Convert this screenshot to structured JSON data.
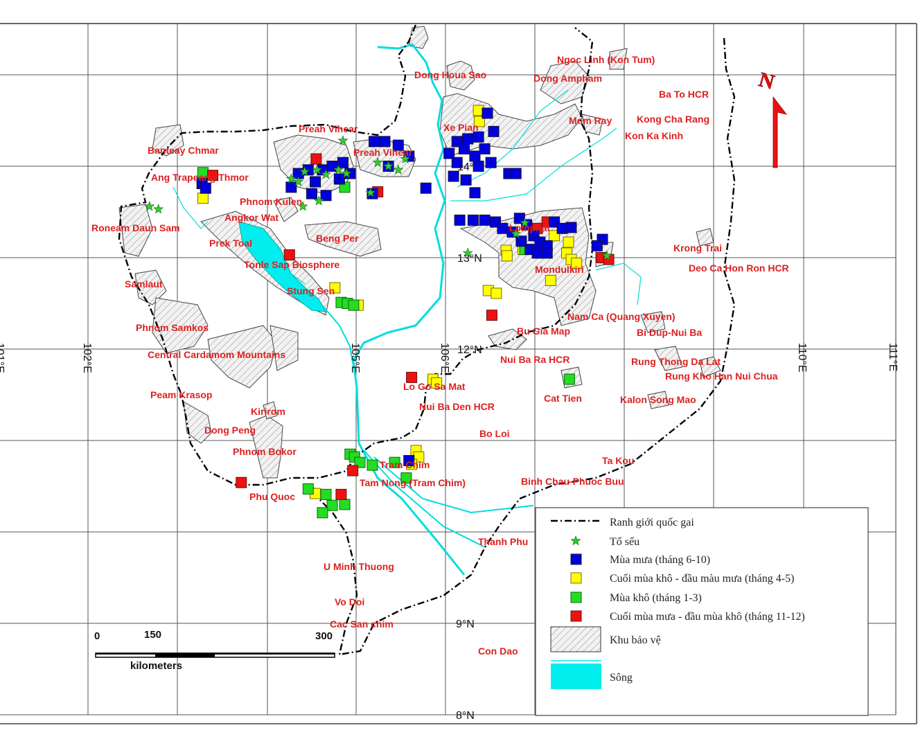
{
  "map": {
    "grid": {
      "lon_labels": [
        "101°E",
        "102°E",
        "105°E",
        "106°E",
        "110°E",
        "111°E"
      ],
      "lat_labels": [
        "14°N",
        "13°N",
        "12°N",
        "9°N",
        "8°N"
      ]
    },
    "north_arrow": "N",
    "place_labels": [
      "Ngoc Linh (Kon Tum)",
      "Dong Houa Sao",
      "Dong Ampham",
      "Ba To HCR",
      "Mom Ray",
      "Kong Cha Rang",
      "Kon Ka Kinh",
      "Xe Pian",
      "Preah Vihear",
      "Preah Vihear",
      "Banteay Chmar",
      "Ang Trapeang Thmor",
      "Phnom Kulen",
      "Angkor Wat",
      "Roneam Daun Sam",
      "Prek Toal",
      "Beng Per",
      "Lomphat",
      "Krong Trai",
      "Tonle Sap Biosphere",
      "Mondulkiri",
      "Deo Ca Hon Ron HCR",
      "Samlaut",
      "Stung Sen",
      "Nam Ca (Quang Xuyen)",
      "Phnom Samkos",
      "Bu Gia Map",
      "Bi Dup-Nui Ba",
      "Central Cardamom Mountains",
      "Nui Ba Ra HCR",
      "Rung Thong Da Lat",
      "Rung Kho Han Nui Chua",
      "Lo Go Sa Mat",
      "Peam Krasop",
      "Cat Tien",
      "Kalon Song Mao",
      "Nui Ba Den HCR",
      "Kirirom",
      "Bo Loi",
      "Dong Peng",
      "Phnom Bokor",
      "Ta Kou",
      "Tram Chim",
      "Tam Nong (Tram Chim)",
      "Binh Chau-Phuoc Buu",
      "Phu Quoc",
      "Thanh Phu",
      "U Minh Thuong",
      "Vo Doi",
      "Cac San chim",
      "Con Dao"
    ],
    "scale_bar": {
      "ticks": [
        "0",
        "150",
        "300"
      ],
      "unit": "kilometers"
    }
  },
  "legend": {
    "items": [
      {
        "label": "Ranh giới quốc gai",
        "symbol": "dash-dot-line",
        "color": "#000000"
      },
      {
        "label": "Tổ sếu",
        "symbol": "star",
        "color": "#22cc22"
      },
      {
        "label": "Mùa mưa (tháng 6-10)",
        "symbol": "square",
        "color": "#0000dd"
      },
      {
        "label": "Cuối mùa khô - đầu màu mưa (tháng 4-5)",
        "symbol": "square",
        "color": "#ffff00"
      },
      {
        "label": "Mùa khô (tháng 1-3)",
        "symbol": "square",
        "color": "#22dd22"
      },
      {
        "label": "Cuối mùa mưa - đầu mùa khô (tháng 11-12)",
        "symbol": "square",
        "color": "#ee1111"
      },
      {
        "label": "Khu bảo vệ",
        "symbol": "hatched-area",
        "color": "#e8e8e8"
      },
      {
        "label": "Sông",
        "symbol": "water",
        "color": "#00eeee"
      }
    ]
  },
  "observations": {
    "nests": [
      [
        104.85,
        14.28
      ],
      [
        102.68,
        13.56
      ],
      [
        102.78,
        13.53
      ],
      [
        104.4,
        13.56
      ],
      [
        104.58,
        13.62
      ],
      [
        104.27,
        13.86
      ],
      [
        104.35,
        13.83
      ],
      [
        104.42,
        13.94
      ],
      [
        104.56,
        13.96
      ],
      [
        104.66,
        13.91
      ],
      [
        104.8,
        13.96
      ],
      [
        104.89,
        13.92
      ],
      [
        105.24,
        14.04
      ],
      [
        105.36,
        14.0
      ],
      [
        105.47,
        13.96
      ],
      [
        105.55,
        14.08
      ],
      [
        105.16,
        13.71
      ],
      [
        106.25,
        13.05
      ],
      [
        106.89,
        13.38
      ],
      [
        106.79,
        13.26
      ],
      [
        107.81,
        13.02
      ]
    ],
    "rainy_season": [
      [
        106.47,
        14.58
      ],
      [
        106.54,
        14.38
      ],
      [
        106.37,
        14.32
      ],
      [
        106.25,
        14.3
      ],
      [
        106.13,
        14.27
      ],
      [
        106.21,
        14.19
      ],
      [
        106.04,
        14.14
      ],
      [
        106.13,
        14.04
      ],
      [
        106.33,
        14.11
      ],
      [
        106.44,
        14.19
      ],
      [
        106.51,
        14.04
      ],
      [
        106.37,
        14.0
      ],
      [
        106.71,
        13.92
      ],
      [
        106.79,
        13.92
      ],
      [
        106.09,
        13.89
      ],
      [
        106.23,
        13.85
      ],
      [
        106.33,
        13.71
      ],
      [
        105.78,
        13.76
      ],
      [
        104.27,
        13.77
      ],
      [
        104.35,
        13.92
      ],
      [
        104.46,
        13.96
      ],
      [
        104.54,
        13.83
      ],
      [
        104.62,
        13.96
      ],
      [
        104.73,
        14.0
      ],
      [
        104.85,
        14.04
      ],
      [
        104.93,
        13.92
      ],
      [
        104.66,
        13.68
      ],
      [
        104.5,
        13.7
      ],
      [
        104.81,
        13.86
      ],
      [
        105.2,
        14.27
      ],
      [
        105.32,
        14.27
      ],
      [
        105.47,
        14.23
      ],
      [
        105.59,
        14.11
      ],
      [
        105.36,
        14.0
      ],
      [
        105.18,
        13.7
      ],
      [
        103.27,
        13.81
      ],
      [
        103.31,
        13.76
      ],
      [
        106.16,
        13.41
      ],
      [
        106.31,
        13.41
      ],
      [
        106.44,
        13.41
      ],
      [
        106.56,
        13.39
      ],
      [
        106.64,
        13.32
      ],
      [
        106.75,
        13.28
      ],
      [
        106.83,
        13.43
      ],
      [
        106.91,
        13.36
      ],
      [
        106.99,
        13.24
      ],
      [
        107.06,
        13.17
      ],
      [
        107.14,
        13.13
      ],
      [
        107.22,
        13.39
      ],
      [
        107.31,
        13.32
      ],
      [
        107.41,
        13.33
      ],
      [
        106.95,
        13.09
      ],
      [
        107.03,
        13.05
      ],
      [
        107.14,
        13.05
      ],
      [
        107.76,
        13.2
      ],
      [
        107.7,
        13.13
      ],
      [
        106.85,
        13.18
      ],
      [
        105.59,
        10.78
      ]
    ],
    "late_dry_early_rainy": [
      [
        103.28,
        13.65
      ],
      [
        106.37,
        14.61
      ],
      [
        106.38,
        14.49
      ],
      [
        106.68,
        13.08
      ],
      [
        106.69,
        13.02
      ],
      [
        106.87,
        13.09
      ],
      [
        107.22,
        13.24
      ],
      [
        107.38,
        13.17
      ],
      [
        107.36,
        13.05
      ],
      [
        107.41,
        12.98
      ],
      [
        107.47,
        12.94
      ],
      [
        106.48,
        12.64
      ],
      [
        106.57,
        12.61
      ],
      [
        107.18,
        12.75
      ],
      [
        104.76,
        12.67
      ],
      [
        105.02,
        12.48
      ],
      [
        105.86,
        11.67
      ],
      [
        105.9,
        11.63
      ],
      [
        105.67,
        10.89
      ],
      [
        105.7,
        10.82
      ],
      [
        105.62,
        10.74
      ],
      [
        104.54,
        10.42
      ]
    ],
    "dry_season": [
      [
        103.28,
        13.93
      ],
      [
        104.87,
        13.77
      ],
      [
        104.83,
        12.51
      ],
      [
        104.9,
        12.5
      ],
      [
        104.97,
        12.48
      ],
      [
        107.39,
        11.67
      ],
      [
        104.93,
        10.85
      ],
      [
        104.98,
        10.82
      ],
      [
        105.04,
        10.76
      ],
      [
        105.18,
        10.73
      ],
      [
        105.43,
        10.76
      ],
      [
        105.56,
        10.59
      ],
      [
        104.46,
        10.47
      ],
      [
        104.66,
        10.41
      ],
      [
        104.73,
        10.29
      ],
      [
        104.87,
        10.3
      ],
      [
        104.62,
        10.21
      ],
      [
        106.89,
        13.09
      ]
    ],
    "late_rainy_early_dry": [
      [
        104.55,
        14.08
      ],
      [
        103.39,
        13.9
      ],
      [
        104.25,
        13.03
      ],
      [
        106.52,
        12.37
      ],
      [
        105.62,
        11.69
      ],
      [
        104.96,
        10.67
      ],
      [
        103.71,
        10.54
      ],
      [
        104.83,
        10.41
      ],
      [
        107.03,
        13.32
      ],
      [
        107.14,
        13.39
      ],
      [
        107.75,
        13.0
      ],
      [
        107.83,
        12.98
      ],
      [
        105.24,
        13.72
      ]
    ]
  }
}
